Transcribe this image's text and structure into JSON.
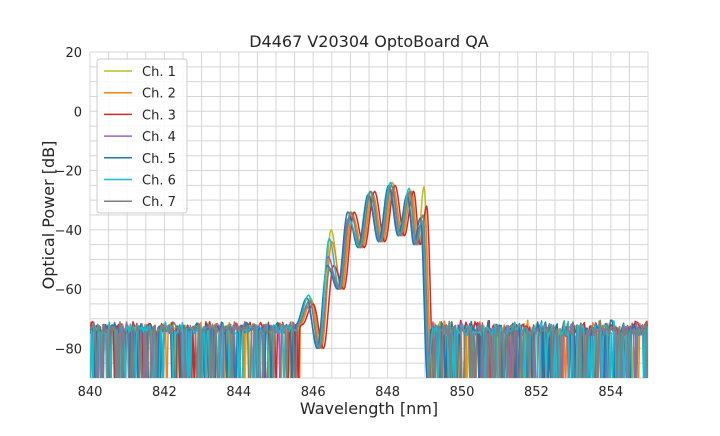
{
  "chart_data": {
    "type": "line",
    "title": "D4467 V20304 OptoBoard QA",
    "xlabel": "Wavelength [nm]",
    "ylabel": "Optical Power [dB]",
    "xlim": [
      840,
      855
    ],
    "ylim": [
      -90,
      20
    ],
    "xticks": [
      840,
      842,
      844,
      846,
      848,
      850,
      852,
      854
    ],
    "yticks": [
      20,
      0,
      -20,
      -40,
      -60,
      -80
    ],
    "grid": true,
    "legend_position": "top-left",
    "noise_floor_range_db": [
      -90,
      -72
    ],
    "lobe_center_wavelengths_nm": [
      845.85,
      846.4,
      846.95,
      847.5,
      848.05,
      848.55,
      848.9
    ],
    "trough_levels_db": [
      -80,
      -60,
      -46,
      -44,
      -42,
      -45
    ],
    "series": [
      {
        "name": "Ch. 1",
        "color": "#bcbd22",
        "shift_nm": 0.08,
        "peaks_db": [
          -63,
          -40,
          -34,
          -28,
          -24,
          -27,
          -25.5
        ]
      },
      {
        "name": "Ch. 2",
        "color": "#ff7f0e",
        "shift_nm": 0.1,
        "peaks_db": [
          -64,
          -44,
          -35,
          -28,
          -26,
          -27,
          -36
        ]
      },
      {
        "name": "Ch. 3",
        "color": "#d62728",
        "shift_nm": 0.15,
        "peaks_db": [
          -65,
          -52,
          -34,
          -27,
          -25,
          -27,
          -32
        ]
      },
      {
        "name": "Ch. 4",
        "color": "#9467bd",
        "shift_nm": 0.0,
        "peaks_db": [
          -66,
          -49,
          -36,
          -29,
          -26,
          -30,
          -38
        ]
      },
      {
        "name": "Ch. 5",
        "color": "#1f77b4",
        "shift_nm": -0.02,
        "peaks_db": [
          -63,
          -52,
          -34,
          -28,
          -25,
          -28,
          -36
        ]
      },
      {
        "name": "Ch. 6",
        "color": "#17becf",
        "shift_nm": 0.03,
        "peaks_db": [
          -62,
          -43,
          -37,
          -27,
          -24,
          -26,
          -37
        ]
      },
      {
        "name": "Ch. 7",
        "color": "#7f7f7f",
        "shift_nm": 0.05,
        "peaks_db": [
          -64,
          -53,
          -34,
          -27,
          -25,
          -27,
          -35
        ]
      }
    ]
  }
}
